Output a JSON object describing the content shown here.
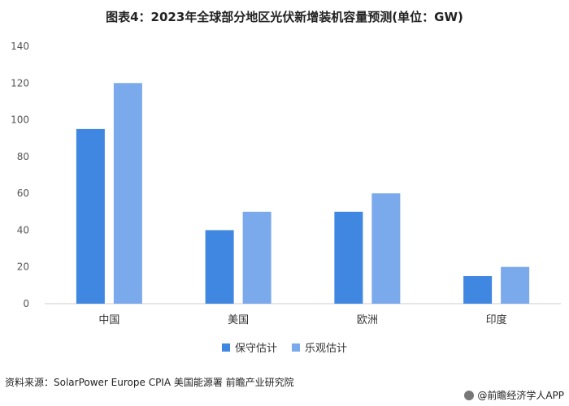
{
  "title": "图表4：2023年全球部分地区光伏新增装机容量预测(单位：GW)",
  "source": "资料来源：SolarPower Europe CPIA 美国能源署 前瞻产业研究院",
  "brand": "@前瞻经济学人APP",
  "colors": {
    "conservative": "#3f87e0",
    "optimistic": "#7aa9ec"
  },
  "chart_data": {
    "type": "bar",
    "categories": [
      "中国",
      "美国",
      "欧洲",
      "印度"
    ],
    "series": [
      {
        "name": "保守估计",
        "values": [
          95,
          40,
          50,
          15
        ]
      },
      {
        "name": "乐观估计",
        "values": [
          120,
          50,
          60,
          20
        ]
      }
    ],
    "yticks": [
      0,
      20,
      40,
      60,
      80,
      100,
      120,
      140
    ],
    "ylim": [
      0,
      140
    ],
    "legend_position": "bottom"
  }
}
